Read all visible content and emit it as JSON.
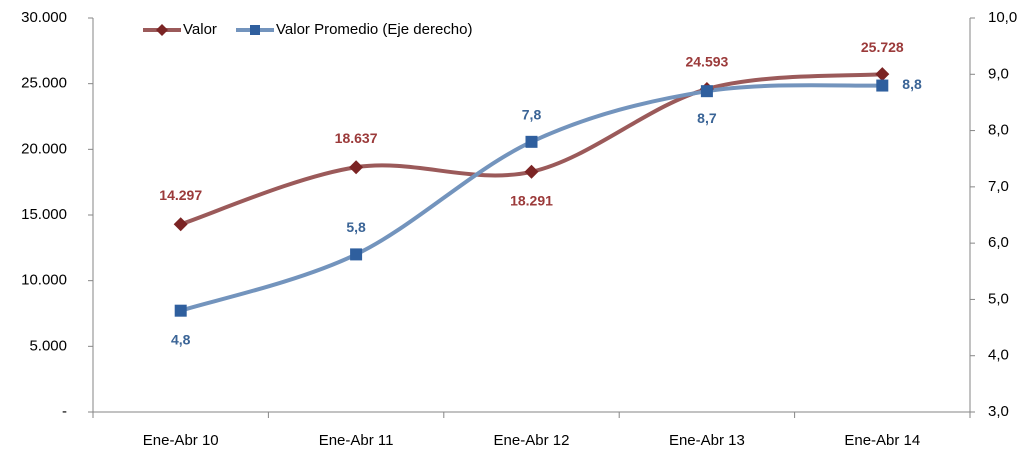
{
  "chart_data": {
    "type": "line",
    "categories": [
      "Ene-Abr 10",
      "Ene-Abr 11",
      "Ene-Abr 12",
      "Ene-Abr 13",
      "Ene-Abr 14"
    ],
    "series": [
      {
        "name": "Valor",
        "color": "#9b5a5a",
        "marker_color": "#7b2424",
        "label_color": "#9b3a3a",
        "values": [
          14297,
          18637,
          18291,
          24593,
          25728
        ],
        "value_labels": [
          "14.297",
          "18.637",
          "18.291",
          "24.593",
          "25.728"
        ]
      },
      {
        "name": "Valor Promedio (Eje derecho)",
        "axis": "y2",
        "color": "#7394bd",
        "marker_color": "#2f5f9e",
        "label_color": "#3a6496",
        "values": [
          4.8,
          5.8,
          7.8,
          8.7,
          8.8
        ],
        "value_labels": [
          "4,8",
          "5,8",
          "7,8",
          "8,7",
          "8,8"
        ]
      }
    ],
    "ylim": [
      0,
      30000
    ],
    "yticks": [
      {
        "value": 0,
        "label": "-"
      },
      {
        "value": 5000,
        "label": "5.000"
      },
      {
        "value": 10000,
        "label": "10.000"
      },
      {
        "value": 15000,
        "label": "15.000"
      },
      {
        "value": 20000,
        "label": "20.000"
      },
      {
        "value": 25000,
        "label": "25.000"
      },
      {
        "value": 30000,
        "label": "30.000"
      }
    ],
    "y2lim": [
      3,
      10
    ],
    "y2ticks": [
      {
        "value": 3,
        "label": "3,0"
      },
      {
        "value": 4,
        "label": "4,0"
      },
      {
        "value": 5,
        "label": "5,0"
      },
      {
        "value": 6,
        "label": "6,0"
      },
      {
        "value": 7,
        "label": "7,0"
      },
      {
        "value": 8,
        "label": "8,0"
      },
      {
        "value": 9,
        "label": "9,0"
      },
      {
        "value": 10,
        "label": "10,0"
      }
    ],
    "grid": false,
    "legend": "top-left"
  }
}
